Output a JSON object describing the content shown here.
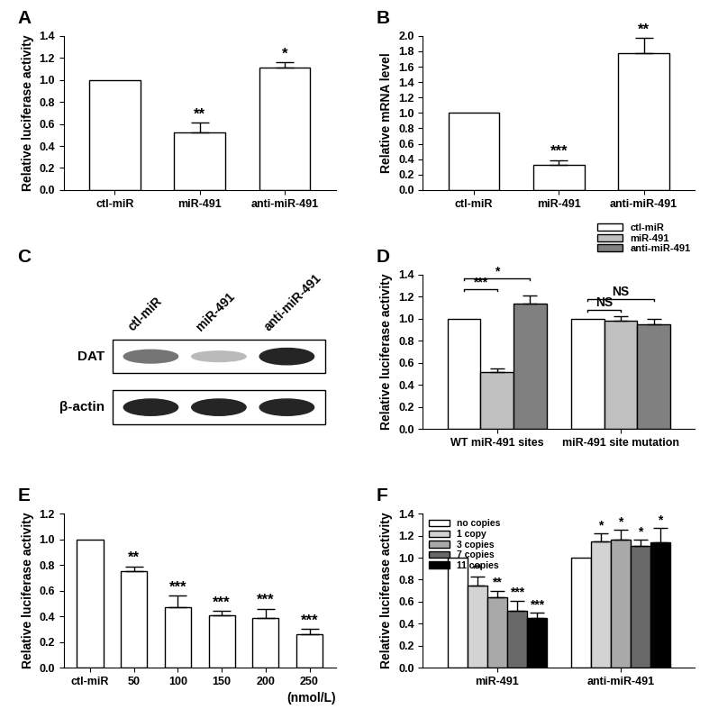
{
  "chart_data": [
    {
      "type": "bar",
      "title": "A",
      "y_label": "Relative luciferase activity",
      "categories": [
        "ctl-miR",
        "miR-491",
        "anti-miR-491"
      ],
      "values": [
        1.0,
        0.52,
        1.11
      ],
      "errors": [
        null,
        0.09,
        0.05
      ],
      "annotations": [
        null,
        "**",
        "*"
      ],
      "color": "#ffffff",
      "ylim": [
        0,
        1.4
      ],
      "yticks": [
        {
          "value": 0,
          "label": "0.0"
        },
        {
          "value": 0.2,
          "label": "0.2"
        },
        {
          "value": 0.4,
          "label": "0.4"
        },
        {
          "value": 0.6,
          "label": "0.6"
        },
        {
          "value": 0.8,
          "label": "0.8"
        },
        {
          "value": 1.0,
          "label": "1.0"
        },
        {
          "value": 1.2,
          "label": "1.2"
        },
        {
          "value": 1.4,
          "label": "1.4"
        }
      ]
    },
    {
      "type": "bar",
      "title": "B",
      "y_label": "Relative mRNA level",
      "categories": [
        "ctl-miR",
        "miR-491",
        "anti-miR-491"
      ],
      "values": [
        1.0,
        0.33,
        1.78
      ],
      "errors": [
        null,
        0.06,
        0.19
      ],
      "annotations": [
        null,
        "***",
        "**"
      ],
      "color": "#ffffff",
      "ylim": [
        0,
        2.0
      ],
      "yticks": [
        {
          "value": 0,
          "label": "0.0"
        },
        {
          "value": 0.2,
          "label": "0.2"
        },
        {
          "value": 0.4,
          "label": "0.4"
        },
        {
          "value": 0.6,
          "label": "0.6"
        },
        {
          "value": 0.8,
          "label": "0.8"
        },
        {
          "value": 1.0,
          "label": "1.0"
        },
        {
          "value": 1.2,
          "label": "1.2"
        },
        {
          "value": 1.4,
          "label": "1.4"
        },
        {
          "value": 1.6,
          "label": "1.6"
        },
        {
          "value": 1.8,
          "label": "1.8"
        },
        {
          "value": 2.0,
          "label": "2.0"
        }
      ]
    },
    {
      "type": "blot",
      "title": "C",
      "categories": [
        "ctl-miR",
        "miR-491",
        "anti-miR-491"
      ],
      "series": [
        {
          "name": "DAT",
          "values": [
            0.6,
            0.3,
            0.95
          ]
        },
        {
          "name": "β-actin",
          "values": [
            0.95,
            0.95,
            0.95
          ]
        }
      ]
    },
    {
      "type": "bar",
      "title": "D",
      "y_label": "Relative luciferase activity",
      "categories": [
        "WT miR-491 sites",
        "miR-491 site mutation"
      ],
      "series": [
        {
          "name": "ctl-miR",
          "color": "#ffffff",
          "values": [
            1.0,
            1.0
          ],
          "errors": [
            null,
            null
          ]
        },
        {
          "name": "miR-491",
          "color": "#c0c0c0",
          "values": [
            0.52,
            0.98
          ],
          "errors": [
            0.03,
            0.04
          ]
        },
        {
          "name": "anti-miR-491",
          "color": "#808080",
          "values": [
            1.14,
            0.95
          ],
          "errors": [
            0.07,
            0.05
          ]
        }
      ],
      "brackets": [
        {
          "category": "WT miR-491 sites",
          "from": "ctl-miR",
          "to": "miR-491",
          "label": "***"
        },
        {
          "category": "WT miR-491 sites",
          "from": "ctl-miR",
          "to": "anti-miR-491",
          "label": "*"
        },
        {
          "category": "miR-491 site mutation",
          "from": "ctl-miR",
          "to": "miR-491",
          "label": "NS"
        },
        {
          "category": "miR-491 site mutation",
          "from": "ctl-miR",
          "to": "anti-miR-491",
          "label": "NS"
        }
      ],
      "legend": "upper right",
      "ylim": [
        0,
        1.4
      ],
      "yticks": [
        {
          "value": 0,
          "label": "0.0"
        },
        {
          "value": 0.2,
          "label": "0.2"
        },
        {
          "value": 0.4,
          "label": "0.4"
        },
        {
          "value": 0.6,
          "label": "0.6"
        },
        {
          "value": 0.8,
          "label": "0.8"
        },
        {
          "value": 1.0,
          "label": "1.0"
        },
        {
          "value": 1.2,
          "label": "1.2"
        },
        {
          "value": 1.4,
          "label": "1.4"
        }
      ]
    },
    {
      "type": "bar",
      "title": "E",
      "y_label": "Relative luciferase activity",
      "x_label": "(nmol/L)",
      "categories": [
        "ctl-miR",
        "50",
        "100",
        "150",
        "200",
        "250"
      ],
      "values": [
        1.0,
        0.75,
        0.47,
        0.41,
        0.39,
        0.26
      ],
      "errors": [
        null,
        0.04,
        0.09,
        0.03,
        0.07,
        0.04
      ],
      "annotations": [
        null,
        "**",
        "***",
        "***",
        "***",
        "***"
      ],
      "color": "#ffffff",
      "ylim": [
        0,
        1.2
      ],
      "yticks": [
        {
          "value": 0,
          "label": "0.0"
        },
        {
          "value": 0.2,
          "label": "0.2"
        },
        {
          "value": 0.4,
          "label": "0.4"
        },
        {
          "value": 0.6,
          "label": "0.6"
        },
        {
          "value": 0.8,
          "label": "0.8"
        },
        {
          "value": 1.0,
          "label": "1.0"
        },
        {
          "value": 1.2,
          "label": "1.2"
        }
      ]
    },
    {
      "type": "bar",
      "title": "F",
      "y_label": "Relative luciferase activity",
      "categories": [
        "miR-491",
        "anti-miR-491"
      ],
      "series": [
        {
          "name": "no copies",
          "color": "#ffffff",
          "values": [
            1.0,
            1.0
          ],
          "errors": [
            null,
            null
          ],
          "annotations": [
            null,
            null
          ]
        },
        {
          "name": "1 copy",
          "color": "#d3d3d3",
          "values": [
            0.75,
            1.15
          ],
          "errors": [
            0.08,
            0.07
          ],
          "annotations": [
            "**",
            "*"
          ]
        },
        {
          "name": "3 copies",
          "color": "#a9a9a9",
          "values": [
            0.64,
            1.16
          ],
          "errors": [
            0.06,
            0.09
          ],
          "annotations": [
            "**",
            "*"
          ]
        },
        {
          "name": "7 copies",
          "color": "#696969",
          "values": [
            0.52,
            1.11
          ],
          "errors": [
            0.09,
            0.05
          ],
          "annotations": [
            "***",
            "*"
          ]
        },
        {
          "name": "11 copies",
          "color": "#000000",
          "values": [
            0.45,
            1.14
          ],
          "errors": [
            0.05,
            0.13
          ],
          "annotations": [
            "***",
            "*"
          ]
        }
      ],
      "legend": "upper left",
      "ylim": [
        0,
        1.4
      ],
      "yticks": [
        {
          "value": 0,
          "label": "0.0"
        },
        {
          "value": 0.2,
          "label": "0.2"
        },
        {
          "value": 0.4,
          "label": "0.4"
        },
        {
          "value": 0.6,
          "label": "0.6"
        },
        {
          "value": 0.8,
          "label": "0.8"
        },
        {
          "value": 1.0,
          "label": "1.0"
        },
        {
          "value": 1.2,
          "label": "1.2"
        },
        {
          "value": 1.4,
          "label": "1.4"
        }
      ]
    }
  ]
}
